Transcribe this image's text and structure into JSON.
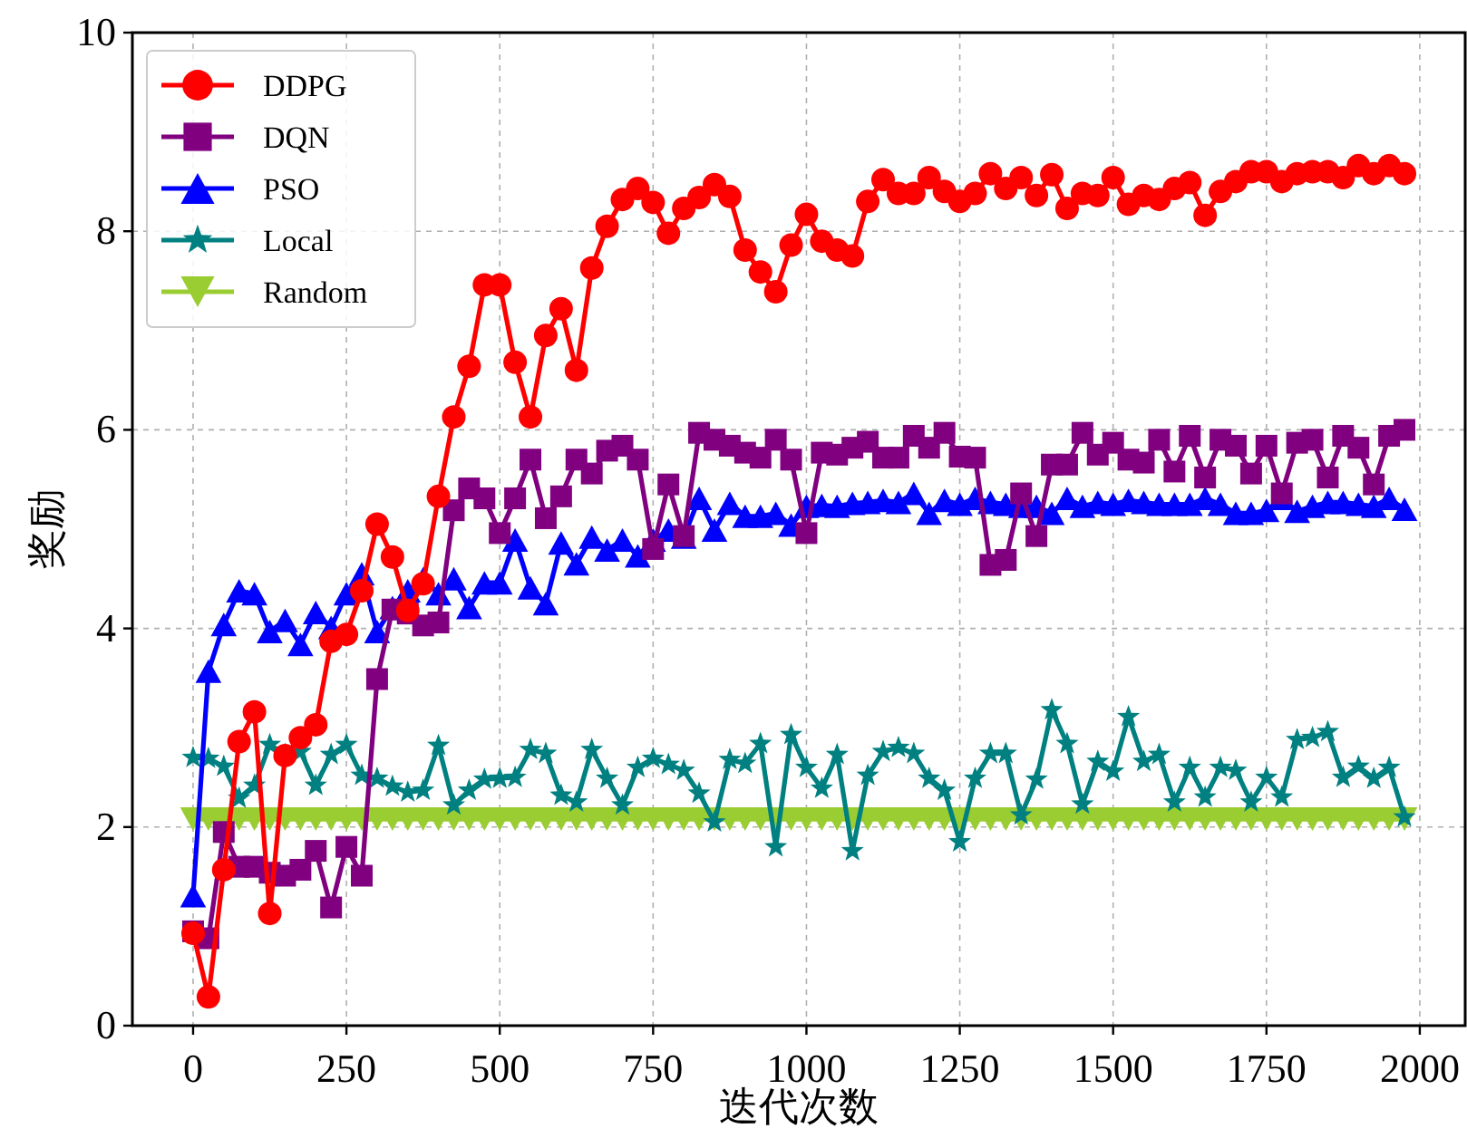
{
  "chart_data": {
    "type": "line",
    "xlabel": "迭代次数",
    "ylabel": "奖励",
    "x": [
      0,
      25,
      50,
      75,
      100,
      125,
      150,
      175,
      200,
      225,
      250,
      275,
      300,
      325,
      350,
      375,
      400,
      425,
      450,
      475,
      500,
      525,
      550,
      575,
      600,
      625,
      650,
      675,
      700,
      725,
      750,
      775,
      800,
      825,
      850,
      875,
      900,
      925,
      950,
      975,
      1000,
      1025,
      1050,
      1075,
      1100,
      1125,
      1150,
      1175,
      1200,
      1225,
      1250,
      1275,
      1300,
      1325,
      1350,
      1375,
      1400,
      1425,
      1450,
      1475,
      1500,
      1525,
      1550,
      1575,
      1600,
      1625,
      1650,
      1675,
      1700,
      1725,
      1750,
      1775,
      1800,
      1825,
      1850,
      1875,
      1900,
      1925,
      1950,
      1975
    ],
    "xlim": [
      -99,
      2074
    ],
    "xticks": [
      0,
      250,
      500,
      750,
      1000,
      1250,
      1500,
      1750,
      2000
    ],
    "ylim": [
      0,
      10
    ],
    "yticks": [
      0,
      2,
      4,
      6,
      8,
      10
    ],
    "grid": true,
    "legend": "top left",
    "line_style": "solid",
    "series": [
      {
        "name": "DDPG",
        "color": "#ff0000",
        "marker": "circle",
        "values": [
          0.93,
          0.29,
          1.57,
          2.86,
          3.16,
          1.13,
          2.72,
          2.9,
          3.03,
          3.87,
          3.94,
          4.38,
          5.05,
          4.72,
          4.18,
          4.45,
          5.33,
          6.13,
          6.64,
          7.46,
          7.46,
          6.68,
          6.13,
          6.95,
          7.22,
          6.6,
          7.63,
          8.05,
          8.32,
          8.43,
          8.29,
          7.98,
          8.23,
          8.34,
          8.47,
          8.35,
          7.81,
          7.59,
          7.39,
          7.86,
          8.17,
          7.9,
          7.81,
          7.75,
          8.3,
          8.52,
          8.38,
          8.38,
          8.54,
          8.4,
          8.3,
          8.38,
          8.58,
          8.43,
          8.54,
          8.36,
          8.57,
          8.23,
          8.38,
          8.36,
          8.54,
          8.27,
          8.36,
          8.32,
          8.43,
          8.49,
          8.16,
          8.4,
          8.5,
          8.6,
          8.6,
          8.5,
          8.58,
          8.6,
          8.6,
          8.54,
          8.66,
          8.58,
          8.66,
          8.58
        ]
      },
      {
        "name": "DQN",
        "color": "#800080",
        "marker": "square",
        "values": [
          0.95,
          0.88,
          1.95,
          1.6,
          1.6,
          1.54,
          1.51,
          1.57,
          1.76,
          1.19,
          1.8,
          1.51,
          3.49,
          4.19,
          4.15,
          4.03,
          4.06,
          5.19,
          5.41,
          5.31,
          4.96,
          5.31,
          5.7,
          5.11,
          5.33,
          5.7,
          5.56,
          5.79,
          5.84,
          5.7,
          4.8,
          5.45,
          4.93,
          5.97,
          5.9,
          5.84,
          5.77,
          5.72,
          5.9,
          5.7,
          4.96,
          5.77,
          5.75,
          5.82,
          5.88,
          5.72,
          5.72,
          5.94,
          5.82,
          5.97,
          5.73,
          5.72,
          4.64,
          4.69,
          5.36,
          4.93,
          5.65,
          5.65,
          5.97,
          5.75,
          5.87,
          5.7,
          5.67,
          5.9,
          5.58,
          5.94,
          5.52,
          5.9,
          5.84,
          5.56,
          5.84,
          5.36,
          5.87,
          5.9,
          5.52,
          5.94,
          5.82,
          5.45,
          5.94,
          6.0
        ]
      },
      {
        "name": "PSO",
        "color": "#0000ff",
        "marker": "triangle",
        "values": [
          1.31,
          3.57,
          4.04,
          4.38,
          4.35,
          3.97,
          4.08,
          3.84,
          4.16,
          4.01,
          4.35,
          4.55,
          3.97,
          4.21,
          4.38,
          4.5,
          4.35,
          4.5,
          4.21,
          4.46,
          4.46,
          4.89,
          4.41,
          4.25,
          4.86,
          4.65,
          4.92,
          4.79,
          4.89,
          4.73,
          4.89,
          4.99,
          4.92,
          5.31,
          4.99,
          5.26,
          5.13,
          5.13,
          5.16,
          5.04,
          5.23,
          5.24,
          5.23,
          5.26,
          5.27,
          5.29,
          5.27,
          5.36,
          5.16,
          5.29,
          5.25,
          5.31,
          5.27,
          5.25,
          5.23,
          5.23,
          5.16,
          5.31,
          5.23,
          5.27,
          5.25,
          5.29,
          5.27,
          5.25,
          5.25,
          5.25,
          5.31,
          5.25,
          5.16,
          5.16,
          5.19,
          5.31,
          5.18,
          5.23,
          5.27,
          5.27,
          5.25,
          5.23,
          5.31,
          5.2
        ]
      },
      {
        "name": "Local",
        "color": "#008080",
        "marker": "star",
        "values": [
          2.7,
          2.69,
          2.61,
          2.29,
          2.42,
          2.83,
          2.73,
          2.76,
          2.42,
          2.73,
          2.83,
          2.52,
          2.49,
          2.41,
          2.35,
          2.37,
          2.82,
          2.22,
          2.37,
          2.48,
          2.49,
          2.5,
          2.78,
          2.74,
          2.32,
          2.25,
          2.78,
          2.49,
          2.22,
          2.6,
          2.69,
          2.63,
          2.57,
          2.34,
          2.05,
          2.68,
          2.64,
          2.84,
          1.8,
          2.93,
          2.6,
          2.39,
          2.73,
          1.76,
          2.52,
          2.76,
          2.8,
          2.74,
          2.49,
          2.37,
          1.85,
          2.49,
          2.74,
          2.74,
          2.12,
          2.48,
          3.18,
          2.84,
          2.23,
          2.66,
          2.56,
          3.11,
          2.66,
          2.73,
          2.25,
          2.6,
          2.3,
          2.6,
          2.57,
          2.25,
          2.5,
          2.3,
          2.88,
          2.9,
          2.96,
          2.5,
          2.61,
          2.49,
          2.6,
          2.1
        ]
      },
      {
        "name": "Random",
        "color": "#9acd32",
        "marker": "triangle_down",
        "values": [
          2.08,
          2.08,
          2.08,
          2.08,
          2.08,
          2.08,
          2.08,
          2.08,
          2.08,
          2.08,
          2.08,
          2.08,
          2.08,
          2.08,
          2.08,
          2.08,
          2.08,
          2.08,
          2.08,
          2.08,
          2.08,
          2.08,
          2.08,
          2.08,
          2.08,
          2.08,
          2.08,
          2.08,
          2.08,
          2.08,
          2.08,
          2.08,
          2.08,
          2.08,
          2.08,
          2.08,
          2.08,
          2.08,
          2.08,
          2.08,
          2.08,
          2.08,
          2.08,
          2.08,
          2.08,
          2.08,
          2.08,
          2.08,
          2.08,
          2.08,
          2.08,
          2.08,
          2.08,
          2.08,
          2.08,
          2.08,
          2.08,
          2.08,
          2.08,
          2.08,
          2.08,
          2.08,
          2.08,
          2.08,
          2.08,
          2.08,
          2.08,
          2.08,
          2.08,
          2.08,
          2.08,
          2.08,
          2.08,
          2.08,
          2.08,
          2.08,
          2.08,
          2.08,
          2.08,
          2.08
        ]
      }
    ]
  }
}
